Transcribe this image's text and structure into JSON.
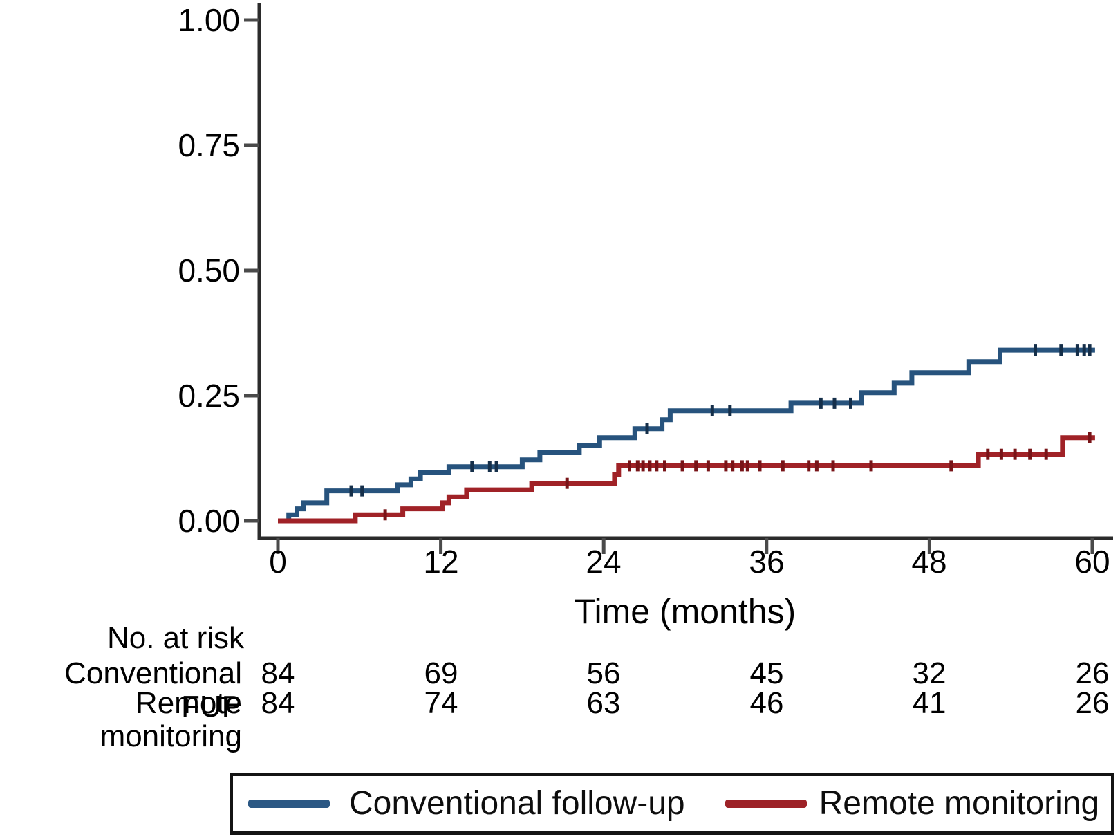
{
  "chart_data": {
    "type": "line",
    "subtype": "kaplan-meier-step",
    "title": "",
    "xlabel": "Time (months)",
    "ylabel": "",
    "xlim": [
      0,
      60
    ],
    "ylim": [
      0,
      1
    ],
    "grid": false,
    "x_ticks": [
      0,
      12,
      24,
      36,
      48,
      60
    ],
    "x_tick_labels": [
      "0",
      "12",
      "24",
      "36",
      "48",
      "60"
    ],
    "y_ticks": [
      1.0,
      0.75,
      0.5,
      0.25,
      0.0
    ],
    "y_tick_labels": [
      "1.00",
      "0.75",
      "0.50",
      "0.25",
      "0.00"
    ],
    "axis_color": "#2b2b2b",
    "tick_color": "#4a4a4a",
    "series": [
      {
        "name": "Conventional follow-up",
        "color": "#27537d",
        "censor_color": "#152f4a",
        "start": [
          0,
          0
        ],
        "end_month": 60.2,
        "steps": [
          [
            0.8,
            0.012
          ],
          [
            1.4,
            0.024
          ],
          [
            1.9,
            0.036
          ],
          [
            3.6,
            0.06
          ],
          [
            8.8,
            0.072
          ],
          [
            9.8,
            0.084
          ],
          [
            10.5,
            0.096
          ],
          [
            12.6,
            0.108
          ],
          [
            18.0,
            0.122
          ],
          [
            19.3,
            0.136
          ],
          [
            22.2,
            0.151
          ],
          [
            23.7,
            0.166
          ],
          [
            26.3,
            0.184
          ],
          [
            28.3,
            0.202
          ],
          [
            28.9,
            0.22
          ],
          [
            37.8,
            0.235
          ],
          [
            43.0,
            0.256
          ],
          [
            45.4,
            0.275
          ],
          [
            46.7,
            0.296
          ],
          [
            50.9,
            0.318
          ],
          [
            53.2,
            0.341
          ]
        ],
        "censor_marks": [
          [
            5.4,
            0.06
          ],
          [
            6.2,
            0.06
          ],
          [
            14.3,
            0.108
          ],
          [
            15.6,
            0.108
          ],
          [
            16.1,
            0.108
          ],
          [
            27.2,
            0.184
          ],
          [
            32.0,
            0.22
          ],
          [
            33.3,
            0.22
          ],
          [
            40.0,
            0.235
          ],
          [
            41.0,
            0.235
          ],
          [
            42.2,
            0.235
          ],
          [
            55.8,
            0.341
          ],
          [
            57.7,
            0.341
          ],
          [
            58.9,
            0.341
          ],
          [
            59.4,
            0.341
          ],
          [
            59.8,
            0.341
          ]
        ]
      },
      {
        "name": "Remote monitoring",
        "color": "#a02227",
        "censor_color": "#781317",
        "start": [
          0,
          0
        ],
        "end_month": 60.2,
        "steps": [
          [
            5.7,
            0.012
          ],
          [
            9.2,
            0.024
          ],
          [
            12.1,
            0.036
          ],
          [
            12.6,
            0.048
          ],
          [
            13.9,
            0.062
          ],
          [
            18.7,
            0.075
          ],
          [
            24.8,
            0.093
          ],
          [
            25.1,
            0.11
          ],
          [
            51.6,
            0.133
          ],
          [
            57.8,
            0.166
          ]
        ],
        "censor_marks": [
          [
            7.9,
            0.012
          ],
          [
            21.3,
            0.075
          ],
          [
            25.9,
            0.11
          ],
          [
            26.5,
            0.11
          ],
          [
            26.9,
            0.11
          ],
          [
            27.4,
            0.11
          ],
          [
            27.9,
            0.11
          ],
          [
            28.5,
            0.11
          ],
          [
            29.8,
            0.11
          ],
          [
            30.8,
            0.11
          ],
          [
            31.7,
            0.11
          ],
          [
            33.0,
            0.11
          ],
          [
            33.5,
            0.11
          ],
          [
            34.2,
            0.11
          ],
          [
            34.6,
            0.11
          ],
          [
            35.5,
            0.11
          ],
          [
            37.2,
            0.11
          ],
          [
            39.1,
            0.11
          ],
          [
            39.7,
            0.11
          ],
          [
            40.9,
            0.11
          ],
          [
            43.7,
            0.11
          ],
          [
            49.6,
            0.11
          ],
          [
            52.3,
            0.133
          ],
          [
            53.3,
            0.133
          ],
          [
            54.3,
            0.133
          ],
          [
            55.4,
            0.133
          ],
          [
            56.6,
            0.133
          ],
          [
            59.8,
            0.166
          ]
        ]
      }
    ],
    "risk_table": {
      "header": "No. at risk",
      "rows": [
        {
          "label": "Conventional FUP",
          "counts": [
            "84",
            "69",
            "56",
            "45",
            "32",
            "26"
          ]
        },
        {
          "label": "Remote monitoring",
          "counts": [
            "84",
            "74",
            "63",
            "46",
            "41",
            "26"
          ]
        }
      ]
    },
    "legend": [
      {
        "label": "Conventional follow-up",
        "color": "#2b5884"
      },
      {
        "label": "Remote monitoring",
        "color": "#9d2227"
      }
    ],
    "legend_position": "bottom"
  }
}
